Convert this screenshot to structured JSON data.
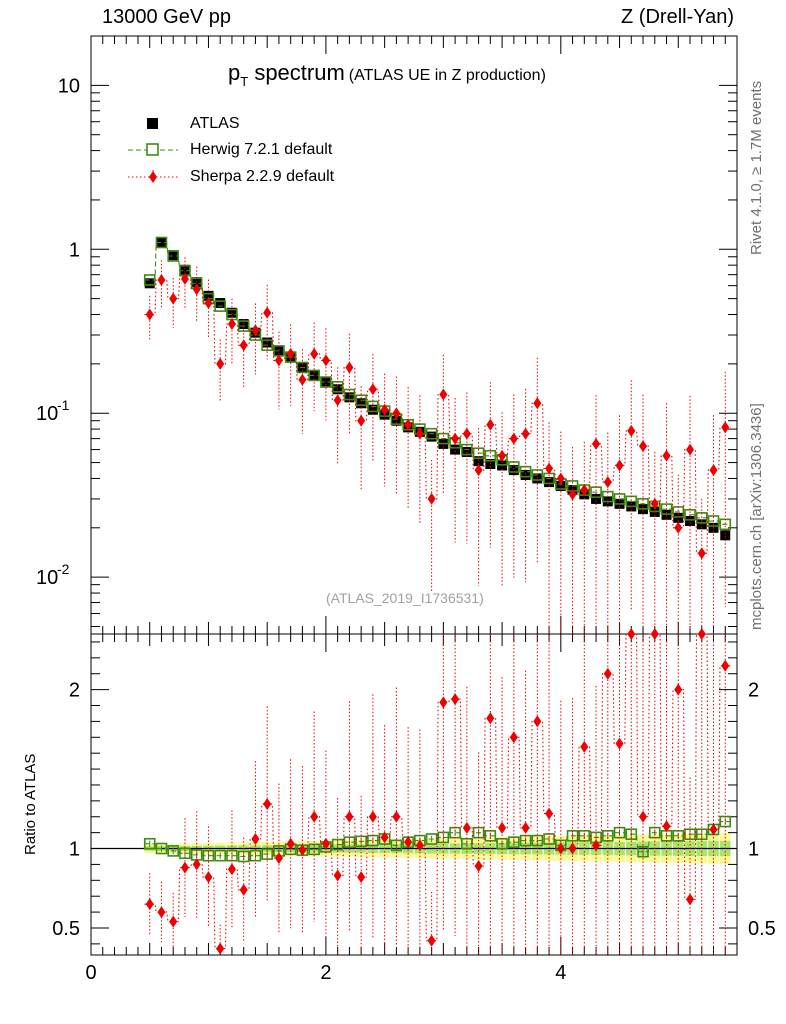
{
  "header": {
    "left": "13000 GeV pp",
    "right": "Z (Drell-Yan)"
  },
  "side_text": {
    "top": "Rivet 4.1.0, ≥ 1.7M events",
    "bottom": "mcplots.cern.ch [arXiv:1306.3436]"
  },
  "plot_title": {
    "main": "p",
    "sub": "T",
    "rest": " spectrum",
    "small": "(ATLAS UE in Z production)"
  },
  "reference": "(ATLAS_2019_I1736531)",
  "ratio_ylabel": "Ratio to ATLAS",
  "colors": {
    "data": "#000000",
    "herwig": "#3f8a12",
    "sherpa": "#ee0000",
    "band_outer": "#fbf98f",
    "band_inner": "#a8e56a"
  },
  "chart_data": {
    "type": "scatter",
    "title": "pT spectrum (ATLAS UE in Z production)",
    "xlabel": "",
    "ylabel": "",
    "xlim": [
      0,
      5.5
    ],
    "ylim_main": [
      0.0045,
      20
    ],
    "ylim_ratio": [
      0.33,
      2.35
    ],
    "yscale_main": "log",
    "x_ticks": [
      "0",
      "2",
      "4"
    ],
    "y_ticks_main": [
      "10^-2",
      "10^-1",
      "1",
      "10"
    ],
    "y_ticks_ratio": [
      "0.5",
      "1",
      "2"
    ],
    "legend": [
      "ATLAS",
      "Herwig 7.2.1 default",
      "Sherpa 2.2.9 default"
    ],
    "legend_position": "top-left",
    "x": [
      0.5,
      0.6,
      0.7,
      0.8,
      0.9,
      1.0,
      1.1,
      1.2,
      1.3,
      1.4,
      1.5,
      1.6,
      1.7,
      1.8,
      1.9,
      2.0,
      2.1,
      2.2,
      2.3,
      2.4,
      2.5,
      2.6,
      2.7,
      2.8,
      2.9,
      3.0,
      3.1,
      3.2,
      3.3,
      3.4,
      3.5,
      3.6,
      3.7,
      3.8,
      3.9,
      4.0,
      4.1,
      4.2,
      4.3,
      4.4,
      4.5,
      4.6,
      4.7,
      4.8,
      4.9,
      5.0,
      5.1,
      5.2,
      5.3,
      5.4
    ],
    "series": [
      {
        "name": "ATLAS",
        "marker": "square-filled",
        "values": [
          0.62,
          1.1,
          0.92,
          0.75,
          0.63,
          0.52,
          0.47,
          0.41,
          0.35,
          0.31,
          0.27,
          0.24,
          0.22,
          0.19,
          0.17,
          0.155,
          0.14,
          0.125,
          0.115,
          0.105,
          0.098,
          0.09,
          0.082,
          0.077,
          0.072,
          0.065,
          0.06,
          0.058,
          0.051,
          0.049,
          0.048,
          0.045,
          0.042,
          0.04,
          0.038,
          0.036,
          0.034,
          0.032,
          0.03,
          0.029,
          0.028,
          0.027,
          0.026,
          0.025,
          0.024,
          0.023,
          0.022,
          0.021,
          0.02,
          0.018
        ]
      },
      {
        "name": "Herwig 7.2.1 default",
        "marker": "square-open",
        "values": [
          0.65,
          1.1,
          0.91,
          0.74,
          0.62,
          0.5,
          0.45,
          0.4,
          0.34,
          0.3,
          0.26,
          0.24,
          0.22,
          0.19,
          0.17,
          0.155,
          0.145,
          0.13,
          0.12,
          0.11,
          0.103,
          0.092,
          0.085,
          0.08,
          0.075,
          0.07,
          0.066,
          0.06,
          0.057,
          0.055,
          0.052,
          0.047,
          0.044,
          0.042,
          0.04,
          0.037,
          0.036,
          0.034,
          0.033,
          0.031,
          0.03,
          0.029,
          0.028,
          0.027,
          0.026,
          0.025,
          0.024,
          0.023,
          0.022,
          0.021
        ],
        "ratio": [
          1.03,
          1.0,
          0.985,
          0.97,
          0.96,
          0.955,
          0.955,
          0.955,
          0.95,
          0.955,
          0.965,
          0.985,
          0.995,
          0.99,
          0.995,
          1.01,
          1.025,
          1.04,
          1.045,
          1.05,
          1.06,
          1.02,
          1.04,
          1.05,
          1.06,
          1.07,
          1.1,
          1.03,
          1.1,
          1.08,
          1.03,
          1.04,
          1.05,
          1.05,
          1.06,
          1.02,
          1.08,
          1.08,
          1.07,
          1.08,
          1.1,
          1.09,
          0.98,
          1.1,
          1.08,
          1.08,
          1.09,
          1.09,
          1.12,
          1.17
        ]
      },
      {
        "name": "Sherpa 2.2.9 default",
        "marker": "diamond-filled",
        "values": [
          0.4,
          0.65,
          0.5,
          0.66,
          0.57,
          0.47,
          0.2,
          0.35,
          0.26,
          0.32,
          0.41,
          0.21,
          0.23,
          0.16,
          0.23,
          0.21,
          0.12,
          0.19,
          0.09,
          0.14,
          0.105,
          0.1,
          0.085,
          0.075,
          0.03,
          0.13,
          0.07,
          0.075,
          0.045,
          0.085,
          0.055,
          0.07,
          0.075,
          0.115,
          0.046,
          0.04,
          0.032,
          0.034,
          0.065,
          0.038,
          0.048,
          0.078,
          0.063,
          0.028,
          0.055,
          0.02,
          0.06,
          0.014,
          0.045,
          0.082
        ],
        "ratio": [
          0.65,
          0.6,
          0.54,
          0.88,
          0.9,
          0.82,
          0.37,
          0.87,
          0.74,
          1.06,
          1.28,
          0.94,
          1.03,
          0.99,
          1.2,
          1.03,
          0.83,
          1.2,
          0.82,
          1.2,
          1.07,
          1.2,
          1.04,
          1.02,
          0.42,
          1.92,
          1.94,
          1.13,
          0.89,
          1.82,
          1.13,
          1.7,
          1.13,
          1.8,
          1.22,
          1.0,
          1.0,
          1.64,
          1.02,
          2.1,
          1.66,
          2.35,
          1.2,
          2.35,
          1.14,
          2.0,
          0.68,
          2.35,
          1.12,
          2.15
        ]
      }
    ]
  }
}
